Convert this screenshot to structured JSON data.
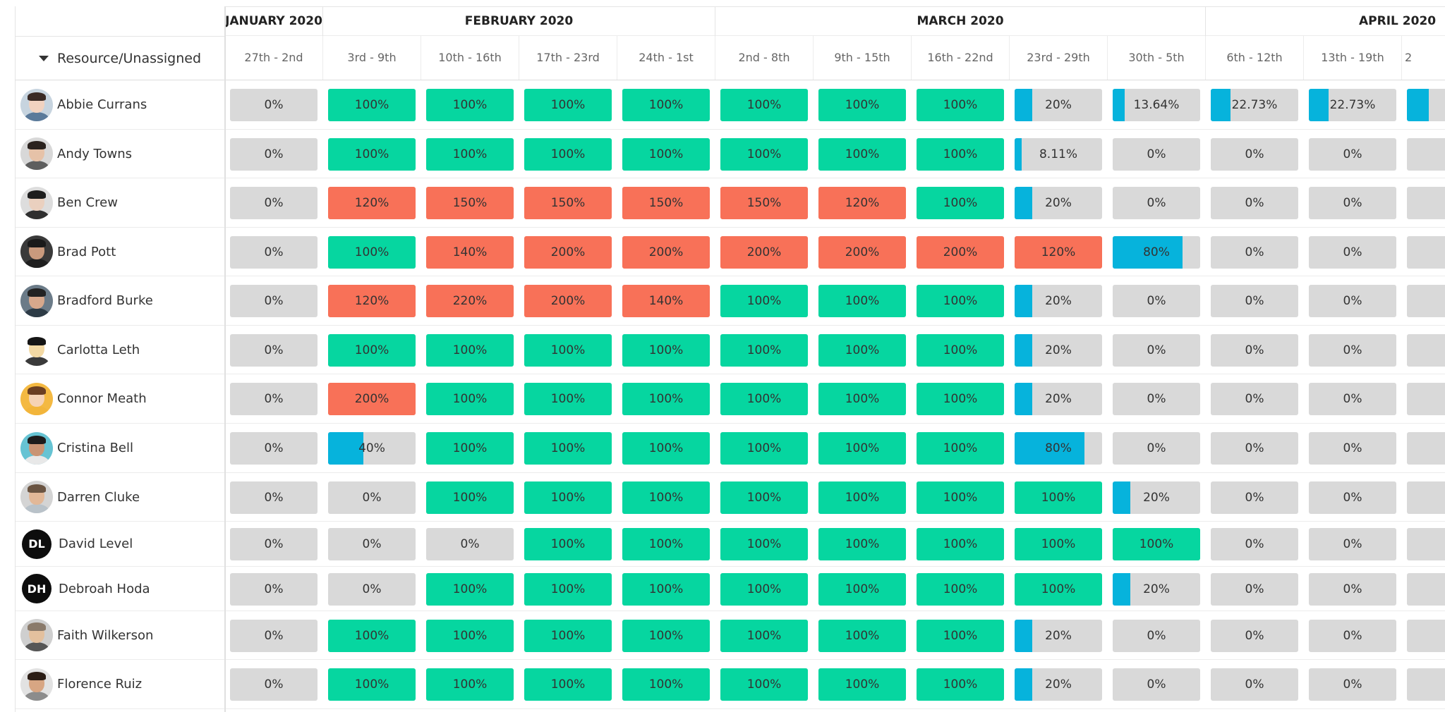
{
  "colors": {
    "green": "#06d6a0",
    "red": "#f87158",
    "blue": "#06b3dc",
    "gray": "#d9d9d9"
  },
  "header": {
    "resource_label": "Resource/Unassigned",
    "months": [
      {
        "label": "JANUARY 2020",
        "span": 1
      },
      {
        "label": "FEBRUARY 2020",
        "span": 4
      },
      {
        "label": "MARCH 2020",
        "span": 5
      },
      {
        "label": "APRIL 2020",
        "span": 3
      }
    ],
    "weeks": [
      "27th - 2nd",
      "3rd - 9th",
      "10th - 16th",
      "17th - 23rd",
      "24th - 1st",
      "2nd - 8th",
      "9th - 15th",
      "16th - 22nd",
      "23rd - 29th",
      "30th - 5th",
      "6th - 12th",
      "13th - 19th",
      "2"
    ]
  },
  "resources": [
    {
      "name": "Abbie Currans",
      "avatar": {
        "type": "photo",
        "skin": "#f1d2c0",
        "hair": "#3a2a25",
        "shirt": "#5b7a9a",
        "bg": "#c7d4df"
      },
      "cells": [
        [
          "0%",
          0,
          "gray"
        ],
        [
          "100%",
          1,
          "green"
        ],
        [
          "100%",
          1,
          "green"
        ],
        [
          "100%",
          1,
          "green"
        ],
        [
          "100%",
          1,
          "green"
        ],
        [
          "100%",
          1,
          "green"
        ],
        [
          "100%",
          1,
          "green"
        ],
        [
          "100%",
          1,
          "green"
        ],
        [
          "20%",
          0.2,
          "blue"
        ],
        [
          "13.64%",
          0.1364,
          "blue"
        ],
        [
          "22.73%",
          0.2273,
          "blue"
        ],
        [
          "22.73%",
          0.2273,
          "blue"
        ],
        [
          "",
          0.25,
          "blue"
        ]
      ]
    },
    {
      "name": "Andy Towns",
      "avatar": {
        "type": "photo",
        "skin": "#e6c2a8",
        "hair": "#2a221e",
        "shirt": "#5e5e5e",
        "bg": "#d8d8d8"
      },
      "cells": [
        [
          "0%",
          0,
          "gray"
        ],
        [
          "100%",
          1,
          "green"
        ],
        [
          "100%",
          1,
          "green"
        ],
        [
          "100%",
          1,
          "green"
        ],
        [
          "100%",
          1,
          "green"
        ],
        [
          "100%",
          1,
          "green"
        ],
        [
          "100%",
          1,
          "green"
        ],
        [
          "100%",
          1,
          "green"
        ],
        [
          "8.11%",
          0.0811,
          "blue"
        ],
        [
          "0%",
          0,
          "gray"
        ],
        [
          "0%",
          0,
          "gray"
        ],
        [
          "0%",
          0,
          "gray"
        ],
        [
          "",
          0,
          "gray"
        ]
      ]
    },
    {
      "name": "Ben Crew",
      "avatar": {
        "type": "photo",
        "skin": "#ead0bf",
        "hair": "#1e1e1e",
        "shirt": "#2f2f2f",
        "bg": "#dddddd"
      },
      "cells": [
        [
          "0%",
          0,
          "gray"
        ],
        [
          "120%",
          1,
          "red"
        ],
        [
          "150%",
          1,
          "red"
        ],
        [
          "150%",
          1,
          "red"
        ],
        [
          "150%",
          1,
          "red"
        ],
        [
          "150%",
          1,
          "red"
        ],
        [
          "120%",
          1,
          "red"
        ],
        [
          "100%",
          1,
          "green"
        ],
        [
          "20%",
          0.2,
          "blue"
        ],
        [
          "0%",
          0,
          "gray"
        ],
        [
          "0%",
          0,
          "gray"
        ],
        [
          "0%",
          0,
          "gray"
        ],
        [
          "",
          0,
          "gray"
        ]
      ]
    },
    {
      "name": "Brad Pott",
      "avatar": {
        "type": "photo",
        "skin": "#c99a7d",
        "hair": "#1a1a1a",
        "shirt": "#1f1f1f",
        "bg": "#3a3a3a"
      },
      "cells": [
        [
          "0%",
          0,
          "gray"
        ],
        [
          "100%",
          1,
          "green"
        ],
        [
          "140%",
          1,
          "red"
        ],
        [
          "200%",
          1,
          "red"
        ],
        [
          "200%",
          1,
          "red"
        ],
        [
          "200%",
          1,
          "red"
        ],
        [
          "200%",
          1,
          "red"
        ],
        [
          "200%",
          1,
          "red"
        ],
        [
          "120%",
          1,
          "red"
        ],
        [
          "80%",
          0.8,
          "blue"
        ],
        [
          "0%",
          0,
          "gray"
        ],
        [
          "0%",
          0,
          "gray"
        ],
        [
          "",
          0,
          "gray"
        ]
      ]
    },
    {
      "name": "Bradford Burke",
      "avatar": {
        "type": "photo",
        "skin": "#d7a88c",
        "hair": "#222222",
        "shirt": "#2d3b46",
        "bg": "#6b7b88"
      },
      "cells": [
        [
          "0%",
          0,
          "gray"
        ],
        [
          "120%",
          1,
          "red"
        ],
        [
          "220%",
          1,
          "red"
        ],
        [
          "200%",
          1,
          "red"
        ],
        [
          "140%",
          1,
          "red"
        ],
        [
          "100%",
          1,
          "green"
        ],
        [
          "100%",
          1,
          "green"
        ],
        [
          "100%",
          1,
          "green"
        ],
        [
          "20%",
          0.2,
          "blue"
        ],
        [
          "0%",
          0,
          "gray"
        ],
        [
          "0%",
          0,
          "gray"
        ],
        [
          "0%",
          0,
          "gray"
        ],
        [
          "",
          0,
          "gray"
        ]
      ]
    },
    {
      "name": "Carlotta Leth",
      "avatar": {
        "type": "photo",
        "skin": "#f3d9a4",
        "hair": "#151515",
        "shirt": "#3a3a3a",
        "bg": "#ffffff"
      },
      "cells": [
        [
          "0%",
          0,
          "gray"
        ],
        [
          "100%",
          1,
          "green"
        ],
        [
          "100%",
          1,
          "green"
        ],
        [
          "100%",
          1,
          "green"
        ],
        [
          "100%",
          1,
          "green"
        ],
        [
          "100%",
          1,
          "green"
        ],
        [
          "100%",
          1,
          "green"
        ],
        [
          "100%",
          1,
          "green"
        ],
        [
          "20%",
          0.2,
          "blue"
        ],
        [
          "0%",
          0,
          "gray"
        ],
        [
          "0%",
          0,
          "gray"
        ],
        [
          "0%",
          0,
          "gray"
        ],
        [
          "",
          0,
          "gray"
        ]
      ]
    },
    {
      "name": "Connor Meath",
      "avatar": {
        "type": "photo",
        "skin": "#f6d3b5",
        "hair": "#6b3f22",
        "shirt": "#f2b53b",
        "bg": "#f4b942"
      },
      "cells": [
        [
          "0%",
          0,
          "gray"
        ],
        [
          "200%",
          1,
          "red"
        ],
        [
          "100%",
          1,
          "green"
        ],
        [
          "100%",
          1,
          "green"
        ],
        [
          "100%",
          1,
          "green"
        ],
        [
          "100%",
          1,
          "green"
        ],
        [
          "100%",
          1,
          "green"
        ],
        [
          "100%",
          1,
          "green"
        ],
        [
          "20%",
          0.2,
          "blue"
        ],
        [
          "0%",
          0,
          "gray"
        ],
        [
          "0%",
          0,
          "gray"
        ],
        [
          "0%",
          0,
          "gray"
        ],
        [
          "",
          0,
          "gray"
        ]
      ]
    },
    {
      "name": "Cristina Bell",
      "avatar": {
        "type": "photo",
        "skin": "#c99474",
        "hair": "#1c1c1c",
        "shirt": "#e8e8e8",
        "bg": "#66c3d3"
      },
      "cells": [
        [
          "0%",
          0,
          "gray"
        ],
        [
          "40%",
          0.4,
          "blue"
        ],
        [
          "100%",
          1,
          "green"
        ],
        [
          "100%",
          1,
          "green"
        ],
        [
          "100%",
          1,
          "green"
        ],
        [
          "100%",
          1,
          "green"
        ],
        [
          "100%",
          1,
          "green"
        ],
        [
          "100%",
          1,
          "green"
        ],
        [
          "80%",
          0.8,
          "blue"
        ],
        [
          "0%",
          0,
          "gray"
        ],
        [
          "0%",
          0,
          "gray"
        ],
        [
          "0%",
          0,
          "gray"
        ],
        [
          "",
          0,
          "gray"
        ]
      ]
    },
    {
      "name": "Darren Cluke",
      "avatar": {
        "type": "photo",
        "skin": "#e2b898",
        "hair": "#6a5442",
        "shirt": "#b9c2c9",
        "bg": "#d4d4d4"
      },
      "cells": [
        [
          "0%",
          0,
          "gray"
        ],
        [
          "0%",
          0,
          "gray"
        ],
        [
          "100%",
          1,
          "green"
        ],
        [
          "100%",
          1,
          "green"
        ],
        [
          "100%",
          1,
          "green"
        ],
        [
          "100%",
          1,
          "green"
        ],
        [
          "100%",
          1,
          "green"
        ],
        [
          "100%",
          1,
          "green"
        ],
        [
          "100%",
          1,
          "green"
        ],
        [
          "20%",
          0.2,
          "blue"
        ],
        [
          "0%",
          0,
          "gray"
        ],
        [
          "0%",
          0,
          "gray"
        ],
        [
          "",
          0,
          "gray"
        ]
      ]
    },
    {
      "name": "David Level",
      "avatar": {
        "type": "initials",
        "initials": "DL"
      },
      "cells": [
        [
          "0%",
          0,
          "gray"
        ],
        [
          "0%",
          0,
          "gray"
        ],
        [
          "0%",
          0,
          "gray"
        ],
        [
          "100%",
          1,
          "green"
        ],
        [
          "100%",
          1,
          "green"
        ],
        [
          "100%",
          1,
          "green"
        ],
        [
          "100%",
          1,
          "green"
        ],
        [
          "100%",
          1,
          "green"
        ],
        [
          "100%",
          1,
          "green"
        ],
        [
          "100%",
          1,
          "green"
        ],
        [
          "0%",
          0,
          "gray"
        ],
        [
          "0%",
          0,
          "gray"
        ],
        [
          "",
          0,
          "gray"
        ]
      ]
    },
    {
      "name": "Debroah Hoda",
      "avatar": {
        "type": "initials",
        "initials": "DH"
      },
      "cells": [
        [
          "0%",
          0,
          "gray"
        ],
        [
          "0%",
          0,
          "gray"
        ],
        [
          "100%",
          1,
          "green"
        ],
        [
          "100%",
          1,
          "green"
        ],
        [
          "100%",
          1,
          "green"
        ],
        [
          "100%",
          1,
          "green"
        ],
        [
          "100%",
          1,
          "green"
        ],
        [
          "100%",
          1,
          "green"
        ],
        [
          "100%",
          1,
          "green"
        ],
        [
          "20%",
          0.2,
          "blue"
        ],
        [
          "0%",
          0,
          "gray"
        ],
        [
          "0%",
          0,
          "gray"
        ],
        [
          "",
          0,
          "gray"
        ]
      ]
    },
    {
      "name": "Faith Wilkerson",
      "avatar": {
        "type": "photo",
        "skin": "#e3c09e",
        "hair": "#8a7a6a",
        "shirt": "#565656",
        "bg": "#cfcfcf"
      },
      "cells": [
        [
          "0%",
          0,
          "gray"
        ],
        [
          "100%",
          1,
          "green"
        ],
        [
          "100%",
          1,
          "green"
        ],
        [
          "100%",
          1,
          "green"
        ],
        [
          "100%",
          1,
          "green"
        ],
        [
          "100%",
          1,
          "green"
        ],
        [
          "100%",
          1,
          "green"
        ],
        [
          "100%",
          1,
          "green"
        ],
        [
          "20%",
          0.2,
          "blue"
        ],
        [
          "0%",
          0,
          "gray"
        ],
        [
          "0%",
          0,
          "gray"
        ],
        [
          "0%",
          0,
          "gray"
        ],
        [
          "",
          0,
          "gray"
        ]
      ]
    },
    {
      "name": "Florence Ruiz",
      "avatar": {
        "type": "photo",
        "skin": "#d8a683",
        "hair": "#2b1d15",
        "shirt": "#8c8c8c",
        "bg": "#e2e2e2"
      },
      "cells": [
        [
          "0%",
          0,
          "gray"
        ],
        [
          "100%",
          1,
          "green"
        ],
        [
          "100%",
          1,
          "green"
        ],
        [
          "100%",
          1,
          "green"
        ],
        [
          "100%",
          1,
          "green"
        ],
        [
          "100%",
          1,
          "green"
        ],
        [
          "100%",
          1,
          "green"
        ],
        [
          "100%",
          1,
          "green"
        ],
        [
          "20%",
          0.2,
          "blue"
        ],
        [
          "0%",
          0,
          "gray"
        ],
        [
          "0%",
          0,
          "gray"
        ],
        [
          "0%",
          0,
          "gray"
        ],
        [
          "",
          0,
          "gray"
        ]
      ]
    }
  ]
}
